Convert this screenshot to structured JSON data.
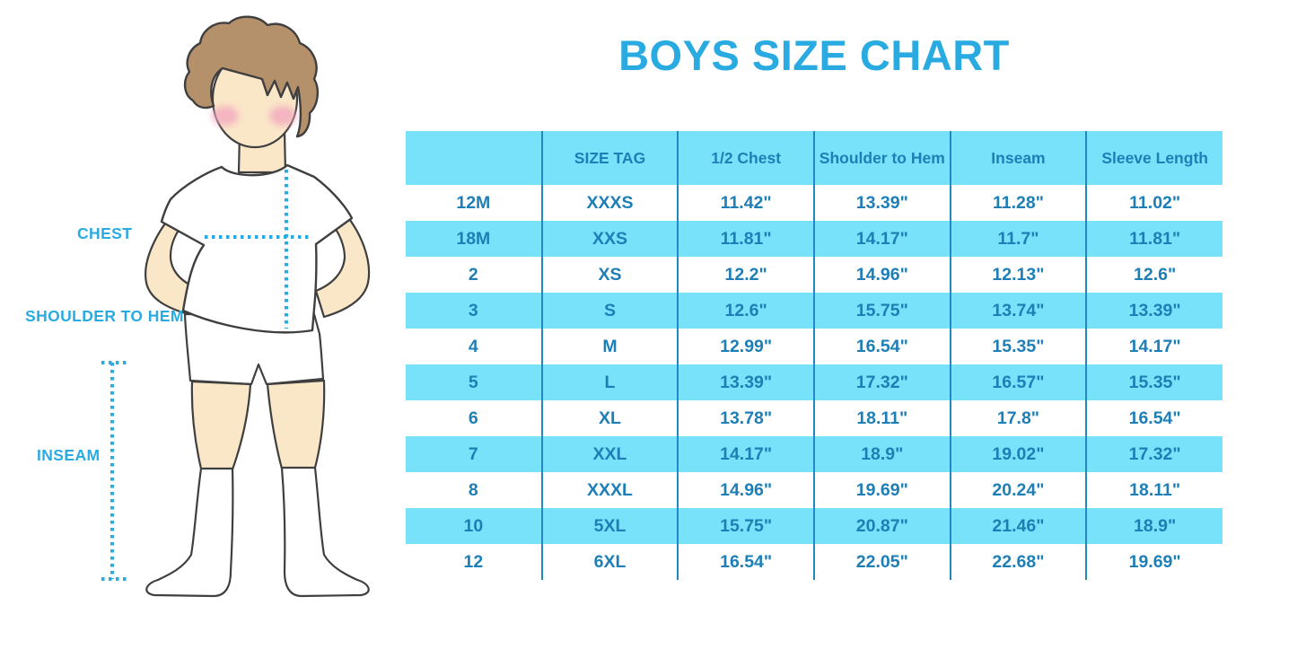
{
  "figure": {
    "labels": {
      "chest": "CHEST",
      "shoulder_to_hem": "SHOULDER TO HEM",
      "inseam": "INSEAM"
    }
  },
  "chart_data": {
    "type": "table",
    "title": "BOYS SIZE CHART",
    "columns": [
      "",
      "SIZE TAG",
      "1/2 Chest",
      "Shoulder to Hem",
      "Inseam",
      "Sleeve Length"
    ],
    "rows": [
      [
        "12M",
        "XXXS",
        "11.42\"",
        "13.39\"",
        "11.28\"",
        "11.02\""
      ],
      [
        "18M",
        "XXS",
        "11.81\"",
        "14.17\"",
        "11.7\"",
        "11.81\""
      ],
      [
        "2",
        "XS",
        "12.2\"",
        "14.96\"",
        "12.13\"",
        "12.6\""
      ],
      [
        "3",
        "S",
        "12.6\"",
        "15.75\"",
        "13.74\"",
        "13.39\""
      ],
      [
        "4",
        "M",
        "12.99\"",
        "16.54\"",
        "15.35\"",
        "14.17\""
      ],
      [
        "5",
        "L",
        "13.39\"",
        "17.32\"",
        "16.57\"",
        "15.35\""
      ],
      [
        "6",
        "XL",
        "13.78\"",
        "18.11\"",
        "17.8\"",
        "16.54\""
      ],
      [
        "7",
        "XXL",
        "14.17\"",
        "18.9\"",
        "19.02\"",
        "17.32\""
      ],
      [
        "8",
        "XXXL",
        "14.96\"",
        "19.69\"",
        "20.24\"",
        "18.11\""
      ],
      [
        "10",
        "5XL",
        "15.75\"",
        "20.87\"",
        "21.46\"",
        "18.9\""
      ],
      [
        "12",
        "6XL",
        "16.54\"",
        "22.05\"",
        "22.68\"",
        "19.69\""
      ]
    ],
    "layout": {
      "header_background": "stripe",
      "row_striping": "alternate",
      "grid": "vertical-lines-only"
    }
  },
  "colors": {
    "accent": "#29ABE2",
    "table_stripe": "#78E2FB",
    "table_line": "#1E89C3",
    "table_text": "#1E7FB6",
    "hair": "#B5916B",
    "skin": "#FAE7C8",
    "blush": "#F2A8BE",
    "outline": "#3F3F3F"
  }
}
